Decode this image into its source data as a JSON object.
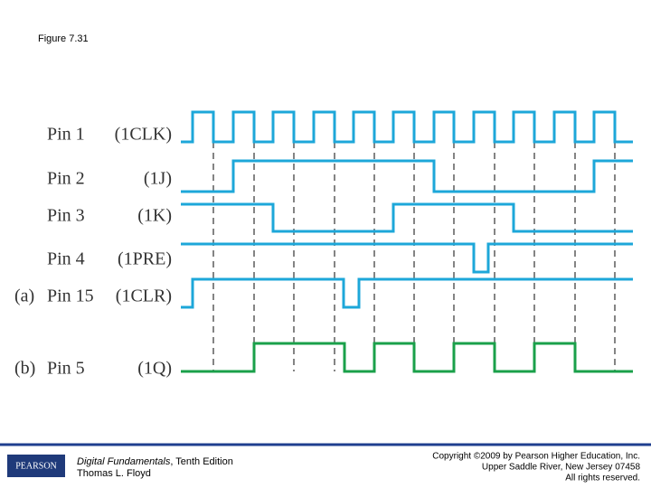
{
  "figure_title": "Figure 7.31",
  "pins": [
    {
      "pin": "Pin 1",
      "signal": "(1CLK)"
    },
    {
      "pin": "Pin 2",
      "signal": "(1J)"
    },
    {
      "pin": "Pin 3",
      "signal": "(1K)"
    },
    {
      "pin": "Pin 4",
      "signal": "(1PRE)"
    },
    {
      "part": "(a)",
      "pin": "Pin 15",
      "signal": "(1CLR)"
    },
    {
      "part": "(b)",
      "pin": "Pin 5",
      "signal": "(1Q)"
    }
  ],
  "footer": {
    "logo": "PEARSON",
    "book_title": "Digital Fundamentals",
    "edition": ", Tenth Edition",
    "author": "Thomas L. Floyd",
    "copyright": [
      "Copyright ©2009 by Pearson Higher Education, Inc.",
      "Upper Saddle River, New Jersey 07458",
      "All rights reserved."
    ]
  }
}
